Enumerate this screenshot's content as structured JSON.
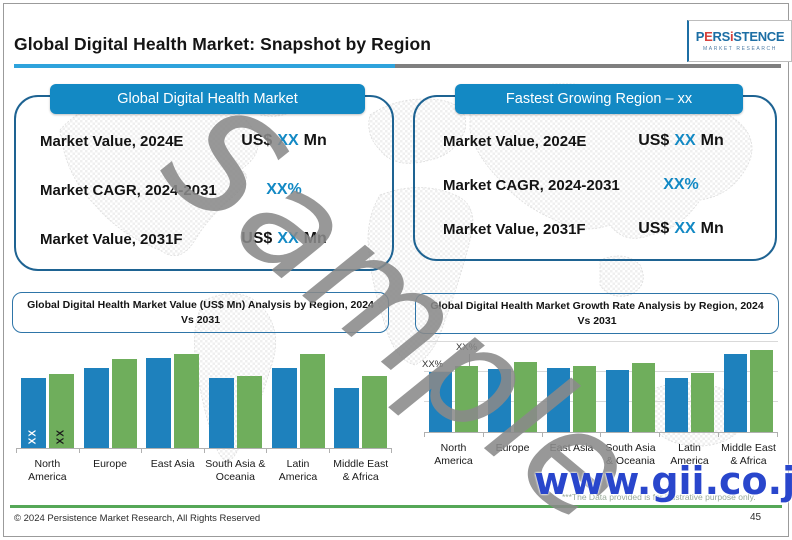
{
  "slide": {
    "title": "Global Digital Health Market: Snapshot by Region",
    "page_number": "45",
    "copyright": "© 2024 Persistence Market Research, All Rights Reserved"
  },
  "logo": {
    "letters": [
      {
        "ch": "P",
        "color": "#1c6ea4"
      },
      {
        "ch": "E",
        "color": "#d6413c"
      },
      {
        "ch": "R",
        "color": "#1c6ea4"
      },
      {
        "ch": "S",
        "color": "#1c6ea4"
      },
      {
        "ch": "i",
        "color": "#d6413c"
      },
      {
        "ch": "S",
        "color": "#1c6ea4"
      },
      {
        "ch": "T",
        "color": "#1c6ea4"
      },
      {
        "ch": "E",
        "color": "#1c6ea4"
      },
      {
        "ch": "N",
        "color": "#1c6ea4"
      },
      {
        "ch": "C",
        "color": "#1c6ea4"
      },
      {
        "ch": "E",
        "color": "#1c6ea4"
      }
    ],
    "tagline": "MARKET RESEARCH"
  },
  "info_boxes": [
    {
      "header": "Global Digital Health Market",
      "rows": [
        {
          "label": "Market Value, 2024E",
          "value_pre": "US$",
          "value_highlight": "XX",
          "value_post": "Mn"
        },
        {
          "label": "Market CAGR, 2024-2031",
          "value_pre": "",
          "value_highlight": "XX%",
          "value_post": ""
        },
        {
          "label": "Market Value, 2031F",
          "value_pre": "US$",
          "value_highlight": "XX",
          "value_post": "Mn"
        }
      ]
    },
    {
      "header": "Fastest Growing Region – xx",
      "rows": [
        {
          "label": "Market Value, 2024E",
          "value_pre": "US$",
          "value_highlight": "XX",
          "value_post": "Mn"
        },
        {
          "label": "Market CAGR, 2024-2031",
          "value_pre": "",
          "value_highlight": "XX%",
          "value_post": ""
        },
        {
          "label": "Market Value, 2031F",
          "value_pre": "US$",
          "value_highlight": "XX",
          "value_post": "Mn"
        }
      ]
    }
  ],
  "chart_data": [
    {
      "type": "bar",
      "title": "Global Digital Health Market Value (US$ Mn) Analysis by Region, 2024 Vs 2031",
      "categories": [
        "North America",
        "Europe",
        "East Asia",
        "South Asia & Oceania",
        "Latin America",
        "Middle East & Africa"
      ],
      "series": [
        {
          "name": "2024",
          "color": "#1e81bd",
          "values": [
            70,
            80,
            90,
            70,
            80,
            60
          ]
        },
        {
          "name": "2031",
          "color": "#6fae5c",
          "values": [
            74,
            89,
            94,
            72,
            94,
            72
          ]
        }
      ],
      "value_labels": {
        "text": "XX",
        "style": "inside-vertical",
        "first_group_only": true
      },
      "values_note": "bar heights illustrative; data labels shown as XX placeholders",
      "ylim": [
        0,
        103
      ],
      "grid": false,
      "legend": "none"
    },
    {
      "type": "bar",
      "title": "Global Digital Health Market Growth Rate Analysis by Region, 2024 Vs 2031",
      "categories": [
        "North America",
        "Europe",
        "East Asia",
        "South Asia & Oceania",
        "Latin America",
        "Middle East & Africa"
      ],
      "series": [
        {
          "name": "2024",
          "color": "#1e81bd",
          "values": [
            60,
            63,
            64,
            62,
            54,
            78
          ]
        },
        {
          "name": "2031",
          "color": "#6fae5c",
          "values": [
            66,
            70,
            66,
            69,
            59,
            82
          ]
        }
      ],
      "value_labels": {
        "text": "XX%",
        "style": "above",
        "first_group_only": true
      },
      "values_note": "bar heights illustrative; data labels shown as XX% placeholders",
      "ylim": [
        0,
        90
      ],
      "grid": true,
      "legend": "none"
    }
  ],
  "watermarks": {
    "sample": "Sample",
    "site": "www.gii.co.jp",
    "disclaimer": "***The Data provided is for illustrative purpose only."
  },
  "colors": {
    "accent_blue": "#1389c4",
    "box_border_blue": "#1e6392",
    "bar_blue": "#1e81bd",
    "bar_green": "#6fae5c",
    "underline_blue": "#2ea3dc",
    "underline_gray": "#7f7f7f",
    "footer_green": "#55a757",
    "gii_blue": "#2946cc"
  }
}
